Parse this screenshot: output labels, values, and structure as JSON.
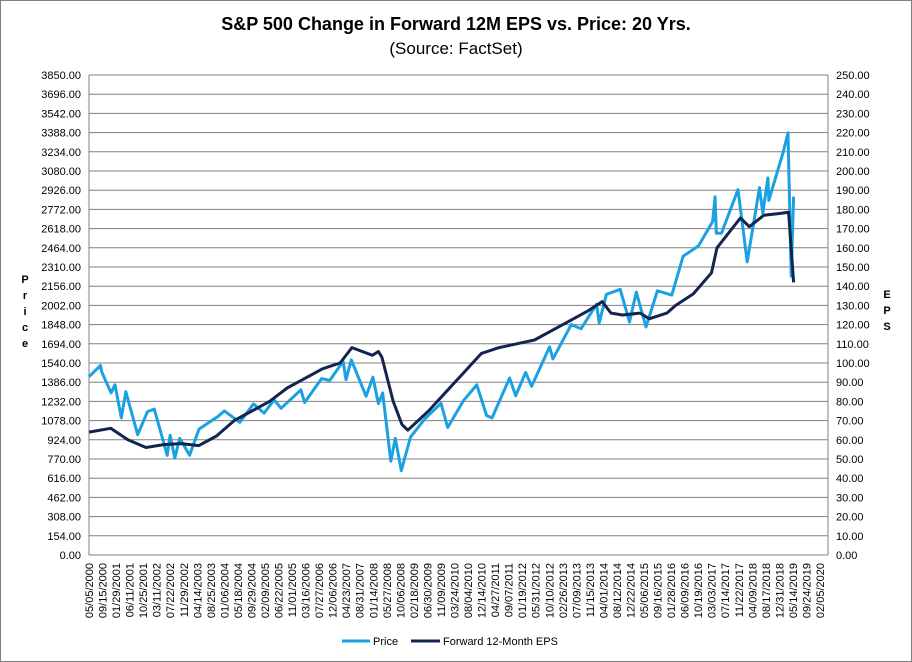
{
  "chart_data": {
    "type": "line",
    "title": "S&P 500 Change in Forward 12M EPS vs. Price: 20 Yrs.",
    "subtitle": "(Source: FactSet)",
    "ylabel_left": "Price",
    "ylabel_right": "EPS",
    "ylim_left": [
      0,
      3850
    ],
    "ylim_right": [
      0,
      250
    ],
    "yticks_left": [
      "0.00",
      "154.00",
      "308.00",
      "462.00",
      "616.00",
      "770.00",
      "924.00",
      "1078.00",
      "1232.00",
      "1386.00",
      "1540.00",
      "1694.00",
      "1848.00",
      "2002.00",
      "2156.00",
      "2310.00",
      "2464.00",
      "2618.00",
      "2772.00",
      "2926.00",
      "3080.00",
      "3234.00",
      "3388.00",
      "3542.00",
      "3696.00",
      "3850.00"
    ],
    "yticks_right": [
      "0.00",
      "10.00",
      "20.00",
      "30.00",
      "40.00",
      "50.00",
      "60.00",
      "70.00",
      "80.00",
      "90.00",
      "100.00",
      "110.00",
      "120.00",
      "130.00",
      "140.00",
      "150.00",
      "160.00",
      "170.00",
      "180.00",
      "190.00",
      "200.00",
      "210.00",
      "220.00",
      "230.00",
      "240.00",
      "250.00"
    ],
    "xticks": [
      "05/05/2000",
      "09/15/2000",
      "01/29/2001",
      "06/11/2001",
      "10/25/2001",
      "03/11/2002",
      "07/22/2002",
      "11/29/2002",
      "04/14/2003",
      "08/25/2003",
      "01/06/2004",
      "05/18/2004",
      "09/29/2004",
      "02/09/2005",
      "06/22/2005",
      "11/01/2005",
      "03/16/2006",
      "07/27/2006",
      "12/06/2006",
      "04/23/2007",
      "08/31/2007",
      "01/14/2008",
      "05/27/2008",
      "10/06/2008",
      "02/18/2009",
      "06/30/2009",
      "11/09/2009",
      "03/24/2010",
      "08/04/2010",
      "12/14/2010",
      "04/27/2011",
      "09/07/2011",
      "01/19/2012",
      "05/31/2012",
      "10/10/2012",
      "02/26/2013",
      "07/09/2013",
      "11/15/2013",
      "04/01/2014",
      "08/12/2014",
      "12/22/2014",
      "05/06/2015",
      "09/16/2015",
      "01/28/2016",
      "06/09/2016",
      "10/19/2016",
      "03/03/2017",
      "07/14/2017",
      "11/22/2017",
      "04/09/2018",
      "08/17/2018",
      "12/31/2018",
      "05/14/2019",
      "09/24/2019",
      "02/05/2020"
    ],
    "grid": true,
    "legend": "bottom",
    "series": [
      {
        "name": "Price",
        "axis": "left",
        "color": "#1ba1e2",
        "points": [
          [
            "2000-05-05",
            1430
          ],
          [
            "2000-09-01",
            1520
          ],
          [
            "2000-09-15",
            1465
          ],
          [
            "2000-12-20",
            1300
          ],
          [
            "2001-01-29",
            1365
          ],
          [
            "2001-04-04",
            1100
          ],
          [
            "2001-05-21",
            1310
          ],
          [
            "2001-09-21",
            965
          ],
          [
            "2001-12-31",
            1150
          ],
          [
            "2002-03-11",
            1170
          ],
          [
            "2002-07-23",
            800
          ],
          [
            "2002-08-22",
            960
          ],
          [
            "2002-10-09",
            777
          ],
          [
            "2002-11-29",
            936
          ],
          [
            "2003-03-11",
            800
          ],
          [
            "2003-06-17",
            1010
          ],
          [
            "2003-12-31",
            1112
          ],
          [
            "2004-03-05",
            1156
          ],
          [
            "2004-08-12",
            1064
          ],
          [
            "2004-12-31",
            1212
          ],
          [
            "2005-04-20",
            1138
          ],
          [
            "2005-08-01",
            1245
          ],
          [
            "2005-10-13",
            1177
          ],
          [
            "2006-05-05",
            1325
          ],
          [
            "2006-06-13",
            1223
          ],
          [
            "2006-12-06",
            1415
          ],
          [
            "2007-02-27",
            1400
          ],
          [
            "2007-07-16",
            1553
          ],
          [
            "2007-08-15",
            1406
          ],
          [
            "2007-10-09",
            1565
          ],
          [
            "2008-03-10",
            1273
          ],
          [
            "2008-05-19",
            1426
          ],
          [
            "2008-07-15",
            1214
          ],
          [
            "2008-08-28",
            1300
          ],
          [
            "2008-11-20",
            752
          ],
          [
            "2009-01-06",
            935
          ],
          [
            "2009-03-09",
            677
          ],
          [
            "2009-06-12",
            946
          ],
          [
            "2009-11-09",
            1093
          ],
          [
            "2010-04-23",
            1217
          ],
          [
            "2010-07-02",
            1023
          ],
          [
            "2010-12-14",
            1241
          ],
          [
            "2011-04-29",
            1364
          ],
          [
            "2011-08-08",
            1119
          ],
          [
            "2011-10-03",
            1099
          ],
          [
            "2012-04-02",
            1419
          ],
          [
            "2012-06-04",
            1278
          ],
          [
            "2012-09-14",
            1465
          ],
          [
            "2012-11-15",
            1353
          ],
          [
            "2013-05-21",
            1669
          ],
          [
            "2013-06-24",
            1573
          ],
          [
            "2013-12-31",
            1848
          ],
          [
            "2014-04-11",
            1815
          ],
          [
            "2014-09-18",
            2011
          ],
          [
            "2014-10-15",
            1862
          ],
          [
            "2014-12-29",
            2090
          ],
          [
            "2015-05-21",
            2131
          ],
          [
            "2015-08-25",
            1868
          ],
          [
            "2015-11-03",
            2109
          ],
          [
            "2016-02-11",
            1829
          ],
          [
            "2016-06-08",
            2119
          ],
          [
            "2016-11-04",
            2085
          ],
          [
            "2017-03-01",
            2396
          ],
          [
            "2017-08-08",
            2480
          ],
          [
            "2017-12-31",
            2674
          ],
          [
            "2018-01-26",
            2873
          ],
          [
            "2018-02-08",
            2581
          ],
          [
            "2018-04-02",
            2582
          ],
          [
            "2018-09-20",
            2931
          ],
          [
            "2018-12-24",
            2351
          ],
          [
            "2019-04-30",
            2946
          ],
          [
            "2019-06-03",
            2744
          ],
          [
            "2019-07-26",
            3025
          ],
          [
            "2019-08-05",
            2844
          ],
          [
            "2019-12-31",
            3231
          ],
          [
            "2020-02-19",
            3386
          ],
          [
            "2020-03-23",
            2237
          ],
          [
            "2020-04-17",
            2875
          ]
        ]
      },
      {
        "name": "Forward 12-Month EPS",
        "axis": "right",
        "color": "#13254f",
        "points": [
          [
            "2000-05-05",
            64
          ],
          [
            "2000-12-15",
            66
          ],
          [
            "2001-06-11",
            60
          ],
          [
            "2001-12-15",
            56
          ],
          [
            "2002-06-15",
            57.5
          ],
          [
            "2002-12-15",
            58
          ],
          [
            "2003-06-15",
            57
          ],
          [
            "2003-12-15",
            62
          ],
          [
            "2004-06-15",
            70
          ],
          [
            "2004-12-15",
            75
          ],
          [
            "2005-06-15",
            80
          ],
          [
            "2005-12-15",
            87
          ],
          [
            "2006-06-15",
            92
          ],
          [
            "2006-12-15",
            97
          ],
          [
            "2007-06-15",
            100
          ],
          [
            "2007-10-15",
            108
          ],
          [
            "2008-05-15",
            104
          ],
          [
            "2008-07-15",
            106
          ],
          [
            "2008-08-20",
            103
          ],
          [
            "2008-12-15",
            80
          ],
          [
            "2009-03-15",
            68
          ],
          [
            "2009-05-15",
            65
          ],
          [
            "2009-12-15",
            75
          ],
          [
            "2010-06-15",
            85
          ],
          [
            "2010-12-15",
            95
          ],
          [
            "2011-06-15",
            105
          ],
          [
            "2011-12-15",
            108
          ],
          [
            "2012-06-15",
            110
          ],
          [
            "2012-12-15",
            112
          ],
          [
            "2013-06-15",
            117
          ],
          [
            "2013-12-15",
            122
          ],
          [
            "2014-06-15",
            127
          ],
          [
            "2014-11-15",
            132
          ],
          [
            "2015-02-15",
            126
          ],
          [
            "2015-06-15",
            125
          ],
          [
            "2015-12-15",
            126
          ],
          [
            "2016-03-15",
            123
          ],
          [
            "2016-09-15",
            126
          ],
          [
            "2016-12-15",
            130
          ],
          [
            "2017-06-15",
            136
          ],
          [
            "2017-12-20",
            147
          ],
          [
            "2018-02-15",
            160
          ],
          [
            "2018-10-15",
            175.5
          ],
          [
            "2019-01-15",
            171
          ],
          [
            "2019-06-15",
            177
          ],
          [
            "2019-12-15",
            178
          ],
          [
            "2020-02-25",
            178.5
          ],
          [
            "2020-04-17",
            142
          ]
        ]
      }
    ]
  }
}
